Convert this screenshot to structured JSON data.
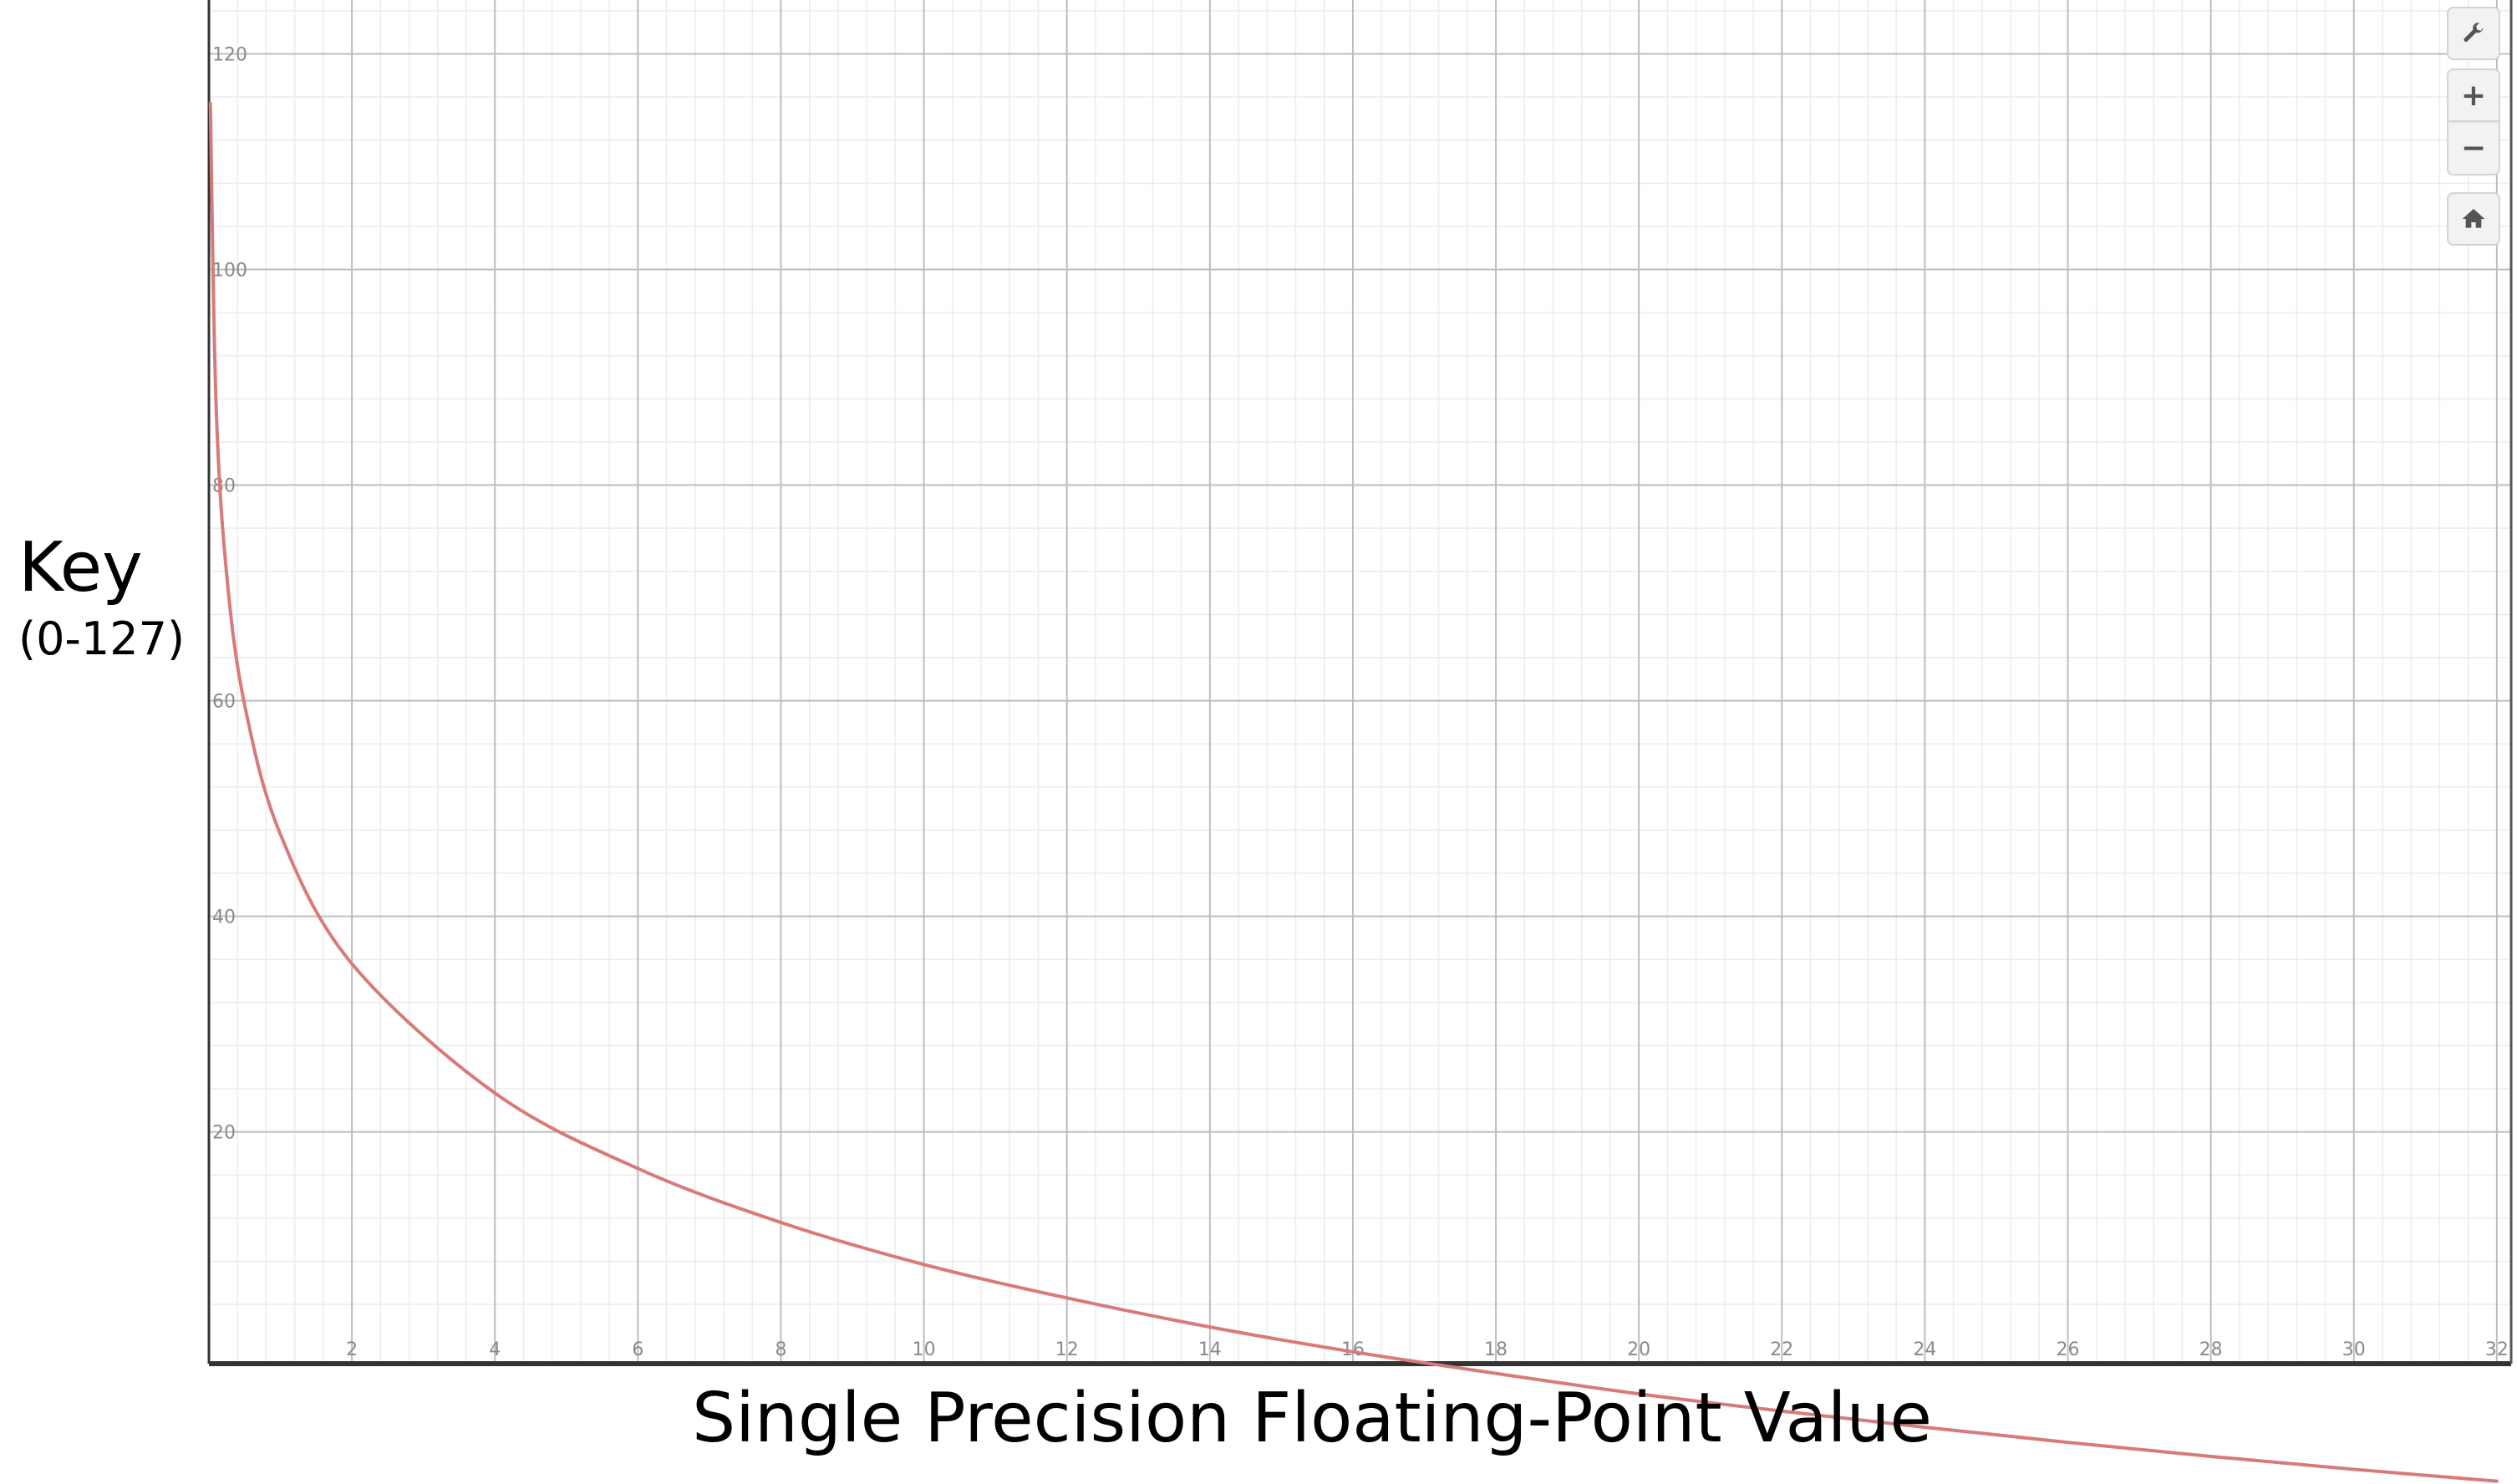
{
  "chart_data": {
    "type": "line",
    "xlabel": "Single Precision Floating-Point Value",
    "ylabel": "Key",
    "ylabel_sub": "(0-127)",
    "xlim": [
      0,
      32.2
    ],
    "ylim": [
      -1.5,
      125
    ],
    "grid": true,
    "x_ticks": [
      2,
      4,
      6,
      8,
      10,
      12,
      14,
      16,
      18,
      20,
      22,
      24,
      26,
      28,
      30,
      32
    ],
    "y_ticks": [
      20,
      40,
      60,
      80,
      100,
      120
    ],
    "series": [
      {
        "color": "#d97a7a",
        "x": [
          0.02,
          0.1,
          0.25,
          0.5,
          1,
          2,
          4,
          6,
          8,
          10,
          12,
          14,
          16,
          18,
          20,
          22,
          24,
          26,
          28,
          30,
          32
        ],
        "y": [
          115.4,
          87.5,
          71.6,
          59.6,
          47.6,
          35.6,
          23.6,
          16.6,
          11.6,
          7.7,
          4.6,
          1.9,
          -0.4,
          -2.4,
          -4.3,
          -5.9,
          -7.4,
          -8.8,
          -10.1,
          -11.3,
          -12.4
        ]
      }
    ]
  },
  "controls": {
    "settings_icon": "wrench-icon",
    "zoom_in_label": "+",
    "zoom_out_label": "−",
    "home_icon": "home-icon"
  }
}
